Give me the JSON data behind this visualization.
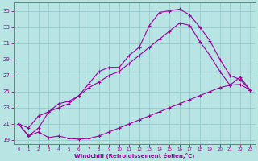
{
  "xlabel": "Windchill (Refroidissement éolien,°C)",
  "bg_color": "#b8e4e4",
  "grid_color": "#96cccc",
  "line_color": "#990099",
  "spine_color": "#777777",
  "xlim": [
    -0.5,
    23.5
  ],
  "ylim": [
    18.5,
    36.0
  ],
  "xticks": [
    0,
    1,
    2,
    3,
    4,
    5,
    6,
    7,
    8,
    9,
    10,
    11,
    12,
    13,
    14,
    15,
    16,
    17,
    18,
    19,
    20,
    21,
    22,
    23
  ],
  "yticks": [
    19,
    21,
    23,
    25,
    27,
    29,
    31,
    33,
    35
  ],
  "line1_x": [
    0,
    1,
    2,
    3,
    4,
    5,
    6,
    7,
    8,
    9,
    10,
    11,
    12,
    13,
    14,
    15,
    16,
    17,
    18,
    19,
    20,
    21,
    22,
    23
  ],
  "line1_y": [
    21.0,
    19.5,
    20.0,
    19.3,
    19.5,
    19.2,
    19.1,
    19.2,
    19.5,
    20.0,
    20.5,
    21.0,
    21.5,
    22.0,
    22.5,
    23.0,
    23.5,
    24.0,
    24.5,
    25.0,
    25.5,
    25.8,
    25.9,
    25.2
  ],
  "line2_x": [
    0,
    1,
    2,
    3,
    4,
    5,
    6,
    7,
    8,
    9,
    10,
    11,
    12,
    13,
    14,
    15,
    16,
    17,
    18,
    19,
    20,
    21,
    22,
    23
  ],
  "line2_y": [
    21.0,
    19.5,
    20.5,
    22.5,
    23.0,
    23.5,
    24.5,
    26.0,
    27.5,
    28.0,
    28.0,
    29.5,
    30.5,
    33.2,
    34.8,
    35.0,
    35.2,
    34.5,
    33.0,
    31.3,
    29.0,
    27.0,
    26.5,
    25.2
  ],
  "line3_x": [
    0,
    1,
    2,
    3,
    4,
    5,
    6,
    7,
    8,
    9,
    10,
    11,
    12,
    13,
    14,
    15,
    16,
    17,
    18,
    19,
    20,
    21,
    22,
    23
  ],
  "line3_y": [
    21.0,
    20.5,
    22.0,
    22.5,
    23.5,
    23.8,
    24.5,
    25.5,
    26.2,
    27.0,
    27.5,
    28.5,
    29.5,
    30.5,
    31.5,
    32.5,
    33.5,
    33.2,
    31.2,
    29.5,
    27.5,
    25.8,
    26.8,
    25.2
  ]
}
